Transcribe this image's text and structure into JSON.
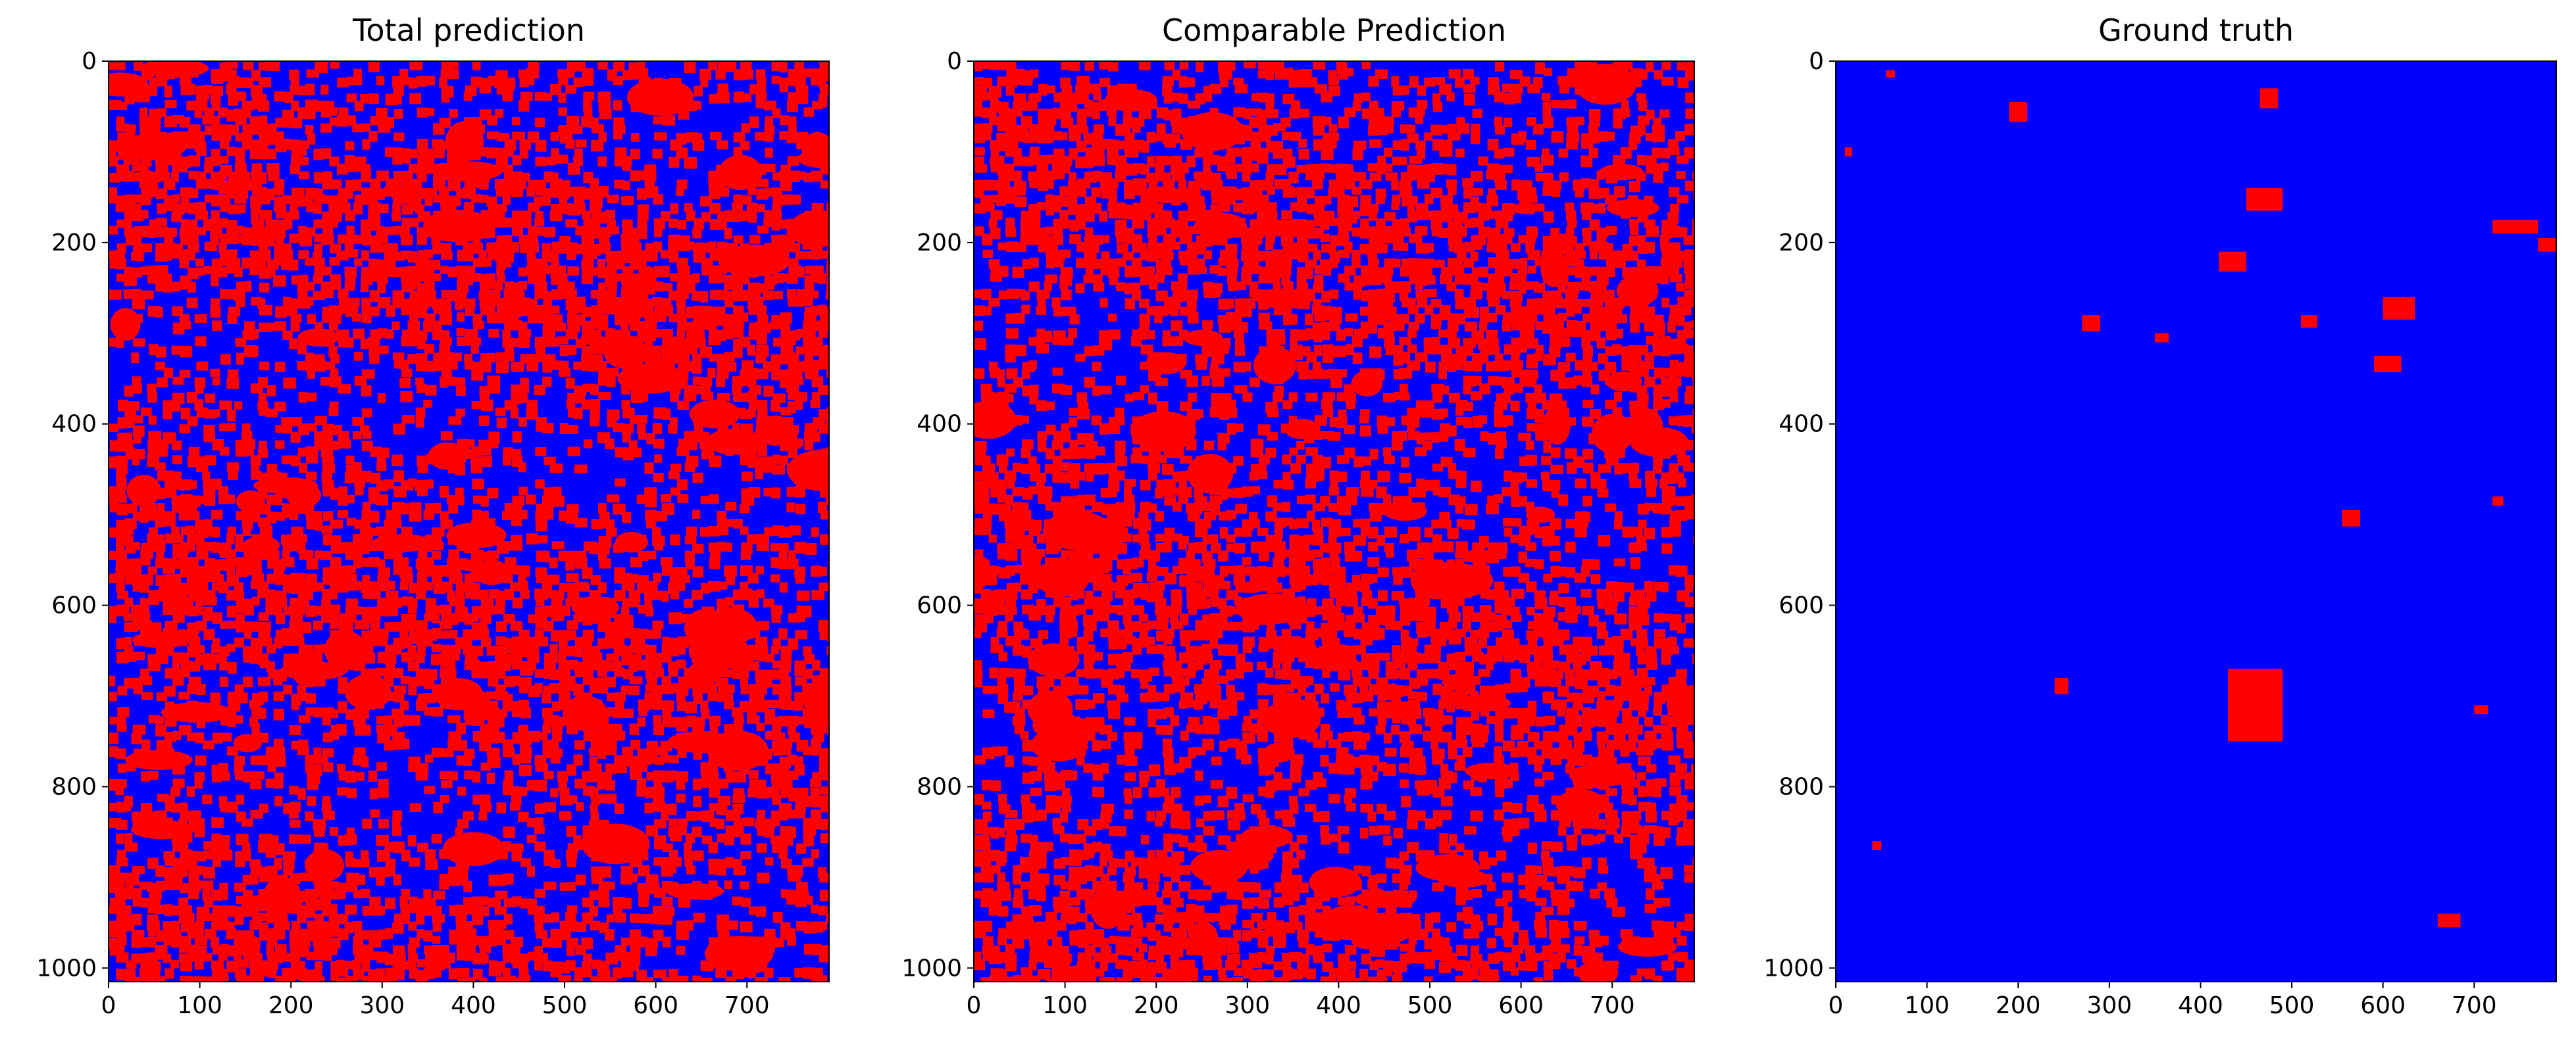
{
  "figure": {
    "colors": {
      "class_1": "#ff0000",
      "class_0": "#0000ff",
      "frame": "#000000"
    }
  },
  "chart_data": [
    {
      "type": "heatmap",
      "title": "Total prediction",
      "xlabel": "",
      "ylabel": "",
      "xlim": [
        0,
        790
      ],
      "ylim": [
        1015,
        0
      ],
      "xticks": [
        "0",
        "100",
        "200",
        "300",
        "400",
        "500",
        "600",
        "700"
      ],
      "yticks": [
        "0",
        "200",
        "400",
        "600",
        "800",
        "1000"
      ],
      "classes": [
        "0",
        "1"
      ],
      "colormap": [
        "#0000ff",
        "#ff0000"
      ],
      "approx_fraction_class_1": 0.45,
      "pattern": "dense speckled"
    },
    {
      "type": "heatmap",
      "title": "Comparable Prediction",
      "xlabel": "",
      "ylabel": "",
      "xlim": [
        0,
        790
      ],
      "ylim": [
        1015,
        0
      ],
      "xticks": [
        "0",
        "100",
        "200",
        "300",
        "400",
        "500",
        "600",
        "700"
      ],
      "yticks": [
        "0",
        "200",
        "400",
        "600",
        "800",
        "1000"
      ],
      "classes": [
        "0",
        "1"
      ],
      "colormap": [
        "#0000ff",
        "#ff0000"
      ],
      "approx_fraction_class_1": 0.45,
      "pattern": "dense speckled"
    },
    {
      "type": "heatmap",
      "title": "Ground truth",
      "xlabel": "",
      "ylabel": "",
      "xlim": [
        0,
        790
      ],
      "ylim": [
        1015,
        0
      ],
      "xticks": [
        "0",
        "100",
        "200",
        "300",
        "400",
        "500",
        "600",
        "700"
      ],
      "yticks": [
        "0",
        "200",
        "400",
        "600",
        "800",
        "1000"
      ],
      "classes": [
        "0",
        "1"
      ],
      "colormap": [
        "#0000ff",
        "#ff0000"
      ],
      "approx_fraction_class_1": 0.03,
      "pattern": "sparse patches",
      "patches": [
        [
          55,
          10,
          10,
          8
        ],
        [
          190,
          45,
          20,
          22
        ],
        [
          465,
          30,
          20,
          22
        ],
        [
          450,
          140,
          40,
          25
        ],
        [
          420,
          210,
          30,
          22
        ],
        [
          600,
          260,
          35,
          25
        ],
        [
          590,
          325,
          30,
          18
        ],
        [
          720,
          175,
          50,
          15
        ],
        [
          770,
          195,
          25,
          15
        ],
        [
          270,
          280,
          20,
          18
        ],
        [
          510,
          280,
          18,
          14
        ],
        [
          555,
          495,
          20,
          18
        ],
        [
          430,
          670,
          60,
          80
        ],
        [
          240,
          680,
          15,
          18
        ],
        [
          660,
          940,
          25,
          15
        ],
        [
          40,
          860,
          10,
          10
        ],
        [
          10,
          95,
          8,
          10
        ],
        [
          350,
          300,
          15,
          10
        ],
        [
          700,
          710,
          15,
          10
        ],
        [
          720,
          480,
          12,
          10
        ]
      ]
    }
  ]
}
